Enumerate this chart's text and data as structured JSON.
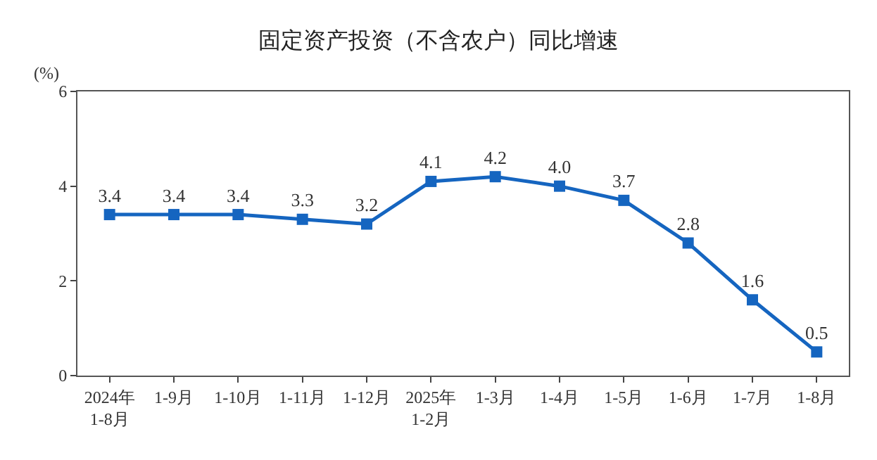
{
  "chart_data": {
    "type": "line",
    "title": "固定资产投资（不含农户）同比增速",
    "ylabel": "(%)",
    "categories": [
      "2024年\n1-8月",
      "1-9月",
      "1-10月",
      "1-11月",
      "1-12月",
      "2025年\n1-2月",
      "1-3月",
      "1-4月",
      "1-5月",
      "1-6月",
      "1-7月",
      "1-8月"
    ],
    "series": [
      {
        "color": "#1565c0",
        "values": [
          3.4,
          3.4,
          3.4,
          3.3,
          3.2,
          4.1,
          4.2,
          4.0,
          3.7,
          2.8,
          1.6,
          0.5
        ],
        "value_labels": [
          "3.4",
          "3.4",
          "3.4",
          "3.3",
          "3.2",
          "4.1",
          "4.2",
          "4.0",
          "3.7",
          "2.8",
          "1.6",
          "0.5"
        ]
      }
    ],
    "ylim": [
      0,
      6
    ],
    "yticks": [
      0,
      2,
      4,
      6
    ],
    "marker": "square",
    "line_style": "solid",
    "legend": false
  }
}
